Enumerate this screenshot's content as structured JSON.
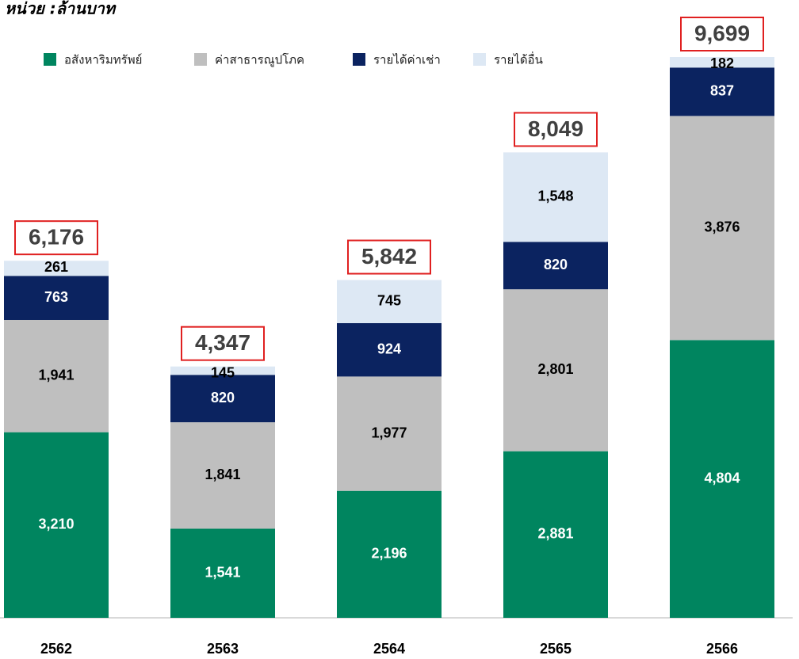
{
  "chart_data": {
    "type": "stacked_bar",
    "title": "หน่วย :ล้านบาท",
    "categories": [
      "2562",
      "2563",
      "2564",
      "2565",
      "2566"
    ],
    "series": [
      {
        "name": "อสังหาริมทรัพย์",
        "color": "#00855f",
        "values": [
          3210,
          1541,
          2196,
          2881,
          4804
        ],
        "value_labels": [
          "3,210",
          "1,541",
          "2,196",
          "2,881",
          "4,804"
        ]
      },
      {
        "name": "ค่าสาธารณูปโภค",
        "color": "#bfbfbf",
        "values": [
          1941,
          1841,
          1977,
          2801,
          3876
        ],
        "value_labels": [
          "1,941",
          "1,841",
          "1,977",
          "2,801",
          "3,876"
        ]
      },
      {
        "name": "รายได้ค่าเช่า",
        "color": "#0b2360",
        "values": [
          763,
          820,
          924,
          820,
          837
        ]
      },
      {
        "name": "รายได้อื่น",
        "color": "#dde8f4",
        "values": [
          261,
          145,
          745,
          1548,
          182
        ],
        "value_labels": [
          "261",
          "145",
          "745",
          "1,548",
          "182"
        ]
      }
    ],
    "totals": [
      6176,
      4347,
      5842,
      8049,
      9699
    ],
    "total_labels": [
      "6,176",
      "4,347",
      "5,842",
      "8,049",
      "9,699"
    ],
    "legend": "top"
  }
}
